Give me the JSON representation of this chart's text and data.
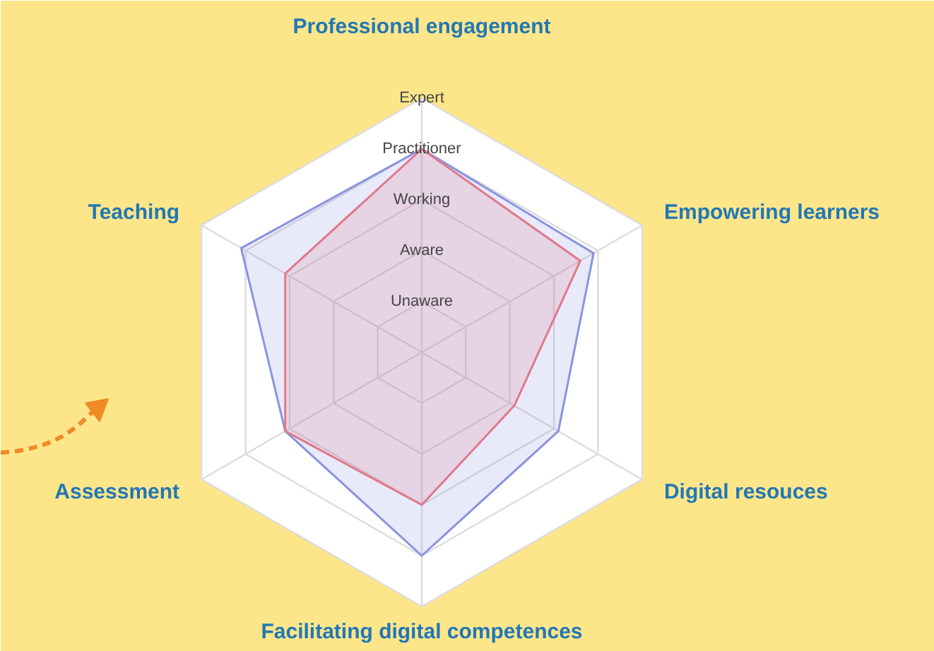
{
  "chart_data": {
    "type": "radar",
    "categories": [
      "Professional engagement",
      "Empowering learners",
      "Digital resouces",
      "Facilitating digital competences",
      "Assessment",
      "Teaching"
    ],
    "series": [
      {
        "color": "#8a94e0",
        "values": [
          4,
          3.9,
          3.1,
          4,
          3.1,
          4.1
        ]
      },
      {
        "color": "#e0788c",
        "values": [
          4,
          3.6,
          2.1,
          3,
          3.1,
          3.1
        ]
      }
    ],
    "ylim": [
      0,
      5
    ],
    "yticks": [
      {
        "value": 1,
        "label": "Unaware"
      },
      {
        "value": 2,
        "label": "Aware"
      },
      {
        "value": 3,
        "label": "Working"
      },
      {
        "value": 4,
        "label": "Practitioner"
      },
      {
        "value": 5,
        "label": "Expert"
      }
    ],
    "grid": true
  }
}
